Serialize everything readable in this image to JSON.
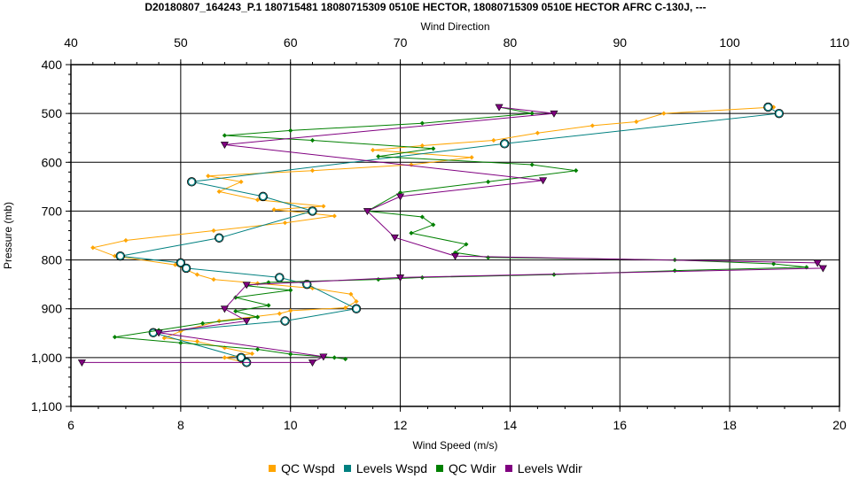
{
  "chart_data": {
    "type": "scatter",
    "title": "D20180807_164243_P.1 180715481 18080715309 0510E HECTOR, 18080715309 0510E HECTOR AFRC C-130J, ---",
    "xlabel": "Wind Speed (m/s)",
    "x2label": "Wind Direction",
    "ylabel": "Pressure (mb)",
    "xlim": [
      6,
      20
    ],
    "x2lim": [
      40,
      110
    ],
    "ylim": [
      400,
      1100
    ],
    "y_inverted": true,
    "grid": true,
    "legend_position": "bottom",
    "x_ticks": [
      "6",
      "8",
      "10",
      "12",
      "14",
      "16",
      "18",
      "20"
    ],
    "x2_ticks": [
      "40",
      "50",
      "60",
      "70",
      "80",
      "90",
      "100",
      "110"
    ],
    "y_ticks": [
      "400",
      "500",
      "600",
      "700",
      "800",
      "900",
      "1,000",
      "1,100"
    ],
    "series": [
      {
        "name": "QC Wspd",
        "axis": "bottom",
        "color": "#FFA500",
        "marker": "diamond",
        "points": [
          [
            18.8,
            487
          ],
          [
            16.8,
            500
          ],
          [
            16.3,
            517
          ],
          [
            15.5,
            525
          ],
          [
            14.5,
            540
          ],
          [
            13.7,
            555
          ],
          [
            12.4,
            566
          ],
          [
            11.5,
            575
          ],
          [
            13.3,
            590
          ],
          [
            12.2,
            605
          ],
          [
            10.4,
            617
          ],
          [
            8.5,
            628
          ],
          [
            9.1,
            640
          ],
          [
            8.7,
            660
          ],
          [
            9.4,
            677
          ],
          [
            10.6,
            690
          ],
          [
            9.7,
            697
          ],
          [
            10.8,
            710
          ],
          [
            9.9,
            724
          ],
          [
            8.6,
            740
          ],
          [
            7.0,
            760
          ],
          [
            6.4,
            775
          ],
          [
            6.8,
            792
          ],
          [
            7.9,
            810
          ],
          [
            8.3,
            830
          ],
          [
            8.6,
            840
          ],
          [
            9.4,
            848
          ],
          [
            10.4,
            858
          ],
          [
            11.1,
            870
          ],
          [
            11.2,
            885
          ],
          [
            11.0,
            898
          ],
          [
            10.0,
            904
          ],
          [
            9.8,
            910
          ],
          [
            8.7,
            925
          ],
          [
            8.0,
            946
          ],
          [
            7.7,
            960
          ],
          [
            8.3,
            967
          ],
          [
            8.8,
            980
          ],
          [
            9.3,
            992
          ],
          [
            8.8,
            1000
          ],
          [
            9.1,
            1008
          ]
        ]
      },
      {
        "name": "Levels Wspd",
        "axis": "bottom",
        "color": "#008080",
        "marker": "circle",
        "points": [
          [
            18.7,
            487
          ],
          [
            18.9,
            500
          ],
          [
            13.9,
            562
          ],
          [
            8.2,
            640
          ],
          [
            9.5,
            670
          ],
          [
            10.4,
            700
          ],
          [
            8.7,
            755
          ],
          [
            6.9,
            792
          ],
          [
            8.0,
            806
          ],
          [
            8.1,
            817
          ],
          [
            9.8,
            836
          ],
          [
            10.3,
            850
          ],
          [
            11.2,
            900
          ],
          [
            9.9,
            925
          ],
          [
            7.5,
            949
          ],
          [
            9.1,
            1000
          ],
          [
            9.2,
            1010
          ]
        ]
      },
      {
        "name": "QC Wdir",
        "axis": "top",
        "color": "#008000",
        "marker": "diamond",
        "points": [
          [
            79,
            487
          ],
          [
            82,
            500
          ],
          [
            72,
            520
          ],
          [
            60,
            535
          ],
          [
            54,
            545
          ],
          [
            62,
            555
          ],
          [
            73,
            572
          ],
          [
            68,
            588
          ],
          [
            82,
            605
          ],
          [
            86,
            617
          ],
          [
            78,
            640
          ],
          [
            70,
            662
          ],
          [
            67,
            700
          ],
          [
            72,
            712
          ],
          [
            73,
            728
          ],
          [
            71,
            745
          ],
          [
            76,
            768
          ],
          [
            75,
            785
          ],
          [
            78,
            795
          ],
          [
            95,
            800
          ],
          [
            104,
            808
          ],
          [
            107,
            815
          ],
          [
            95,
            822
          ],
          [
            84,
            830
          ],
          [
            72,
            836
          ],
          [
            68,
            840
          ],
          [
            58,
            846
          ],
          [
            56,
            853
          ],
          [
            60,
            862
          ],
          [
            55,
            877
          ],
          [
            58,
            893
          ],
          [
            55,
            905
          ],
          [
            57,
            917
          ],
          [
            52,
            930
          ],
          [
            48,
            944
          ],
          [
            44,
            958
          ],
          [
            50,
            970
          ],
          [
            57,
            983
          ],
          [
            60,
            993
          ],
          [
            64,
            1000
          ],
          [
            65,
            1003
          ]
        ]
      },
      {
        "name": "Levels Wdir",
        "axis": "top",
        "color": "#800080",
        "marker": "triangle",
        "points": [
          [
            79,
            487
          ],
          [
            84,
            500
          ],
          [
            54,
            564
          ],
          [
            83,
            637
          ],
          [
            70,
            670
          ],
          [
            67,
            700
          ],
          [
            69.5,
            754
          ],
          [
            75,
            792
          ],
          [
            108,
            806
          ],
          [
            108.5,
            817
          ],
          [
            70,
            836
          ],
          [
            56,
            851
          ],
          [
            54,
            900
          ],
          [
            56,
            925
          ],
          [
            48,
            949
          ],
          [
            63,
            998
          ],
          [
            62,
            1010
          ],
          [
            41,
            1010
          ]
        ]
      }
    ]
  }
}
